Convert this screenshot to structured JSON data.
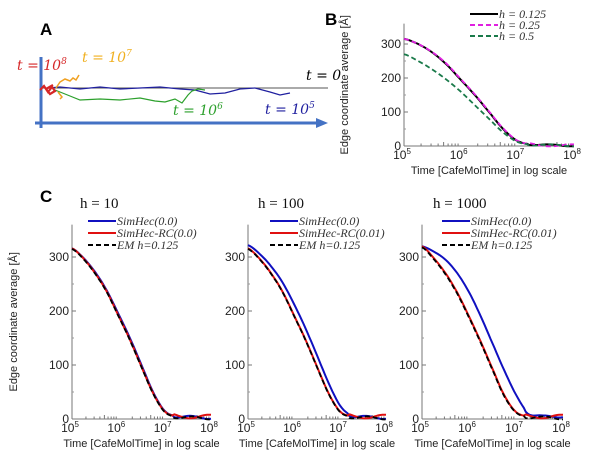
{
  "panels": {
    "A": {
      "label": "A",
      "annotations": [
        {
          "text": "t = 10",
          "sup": "8",
          "color": "#d62728"
        },
        {
          "text": "t = 10",
          "sup": "7",
          "color": "#f0b020"
        },
        {
          "text": "t = 0",
          "sup": "",
          "color": "#000000"
        },
        {
          "text": "t = 10",
          "sup": "6",
          "color": "#2ca02c"
        },
        {
          "text": "t = 10",
          "sup": "5",
          "color": "#1f1f9f"
        }
      ],
      "axis_color": "#4472c4"
    },
    "B": {
      "label": "B"
    },
    "C": {
      "label": "C"
    }
  },
  "chart_data": [
    {
      "id": "B",
      "type": "line",
      "title": "",
      "xlabel": "Time [CafeMolTime] in log scale",
      "ylabel": "Edge coordinate average [Å]",
      "xscale": "log",
      "xlim": [
        100000,
        100000000
      ],
      "ylim": [
        0,
        360
      ],
      "xticks": [
        "10^5",
        "10^6",
        "10^7",
        "10^8"
      ],
      "yticks": [
        0,
        100,
        200,
        300
      ],
      "legend": "top-right",
      "x_log10": [
        5,
        5.25,
        5.5,
        5.75,
        6,
        6.25,
        6.5,
        6.75,
        7,
        7.25,
        7.5,
        7.75,
        8
      ],
      "series": [
        {
          "name": "h = 0.125",
          "color": "#000000",
          "dash": "solid",
          "values": [
            315,
            300,
            275,
            240,
            195,
            150,
            100,
            50,
            15,
            5,
            2,
            2,
            2
          ]
        },
        {
          "name": "h = 0.25",
          "color": "#e020e0",
          "dash": "dashed",
          "values": [
            315,
            300,
            276,
            242,
            197,
            152,
            102,
            52,
            16,
            5,
            2,
            2,
            2
          ]
        },
        {
          "name": "h = 0.5",
          "color": "#1a7a4a",
          "dash": "dashed",
          "values": [
            270,
            250,
            225,
            195,
            160,
            120,
            80,
            40,
            12,
            4,
            2,
            2,
            2
          ]
        }
      ]
    },
    {
      "id": "C1",
      "type": "line",
      "title": "h = 10",
      "xlabel": "Time [CafeMolTime] in log scale",
      "ylabel": "Edge coordinate average [Å]",
      "xscale": "log",
      "xlim": [
        100000,
        100000000
      ],
      "ylim": [
        0,
        360
      ],
      "xticks": [
        "10^5",
        "10^6",
        "10^7",
        "10^8"
      ],
      "yticks": [
        0,
        100,
        200,
        300
      ],
      "legend": "top-right",
      "x_log10": [
        5,
        5.25,
        5.5,
        5.75,
        6,
        6.25,
        6.5,
        6.75,
        7,
        7.25,
        7.5,
        7.75,
        8
      ],
      "series": [
        {
          "name": "SimHec(0.0)",
          "color": "#1010c0",
          "dash": "solid",
          "values": [
            316,
            298,
            272,
            238,
            195,
            150,
            100,
            50,
            15,
            5,
            3,
            3,
            3
          ]
        },
        {
          "name": "SimHec-RC(0.0)",
          "color": "#e01010",
          "dash": "solid",
          "values": [
            316,
            297,
            270,
            236,
            192,
            147,
            97,
            48,
            14,
            5,
            4,
            5,
            5
          ]
        },
        {
          "name": "EM h=0.125",
          "color": "#000000",
          "dash": "dashed",
          "values": [
            315,
            296,
            269,
            235,
            191,
            146,
            96,
            47,
            13,
            4,
            2,
            2,
            2
          ]
        }
      ]
    },
    {
      "id": "C2",
      "type": "line",
      "title": "h = 100",
      "xlabel": "Time [CafeMolTime] in log scale",
      "ylabel": "",
      "xscale": "log",
      "xlim": [
        100000,
        100000000
      ],
      "ylim": [
        0,
        360
      ],
      "xticks": [
        "10^5",
        "10^6",
        "10^7",
        "10^8"
      ],
      "yticks": [
        0,
        100,
        200,
        300
      ],
      "legend": "top-right",
      "x_log10": [
        5,
        5.25,
        5.5,
        5.75,
        6,
        6.25,
        6.5,
        6.75,
        7,
        7.25,
        7.5,
        7.75,
        8
      ],
      "series": [
        {
          "name": "SimHec(0.0)",
          "color": "#1010c0",
          "dash": "solid",
          "values": [
            322,
            306,
            283,
            253,
            213,
            168,
            118,
            67,
            25,
            6,
            3,
            3,
            3
          ]
        },
        {
          "name": "SimHec-RC(0.01)",
          "color": "#e01010",
          "dash": "solid",
          "values": [
            316,
            297,
            270,
            236,
            192,
            147,
            97,
            48,
            14,
            5,
            4,
            5,
            5
          ]
        },
        {
          "name": "EM h=0.125",
          "color": "#000000",
          "dash": "dashed",
          "values": [
            315,
            296,
            269,
            235,
            191,
            146,
            96,
            47,
            13,
            4,
            2,
            2,
            2
          ]
        }
      ]
    },
    {
      "id": "C3",
      "type": "line",
      "title": "h = 1000",
      "xlabel": "Time [CafeMolTime] in log scale",
      "ylabel": "",
      "xscale": "log",
      "xlim": [
        100000,
        100000000
      ],
      "ylim": [
        0,
        360
      ],
      "xticks": [
        "10^5",
        "10^6",
        "10^7",
        "10^8"
      ],
      "yticks": [
        0,
        100,
        200,
        300
      ],
      "legend": "top-right",
      "x_log10": [
        5,
        5.25,
        5.5,
        5.75,
        6,
        6.25,
        6.5,
        6.75,
        7,
        7.25,
        7.5,
        7.75,
        8
      ],
      "series": [
        {
          "name": "SimHec(0.0)",
          "color": "#1010c0",
          "dash": "solid",
          "values": [
            320,
            310,
            295,
            270,
            235,
            190,
            140,
            90,
            45,
            12,
            4,
            5,
            6
          ]
        },
        {
          "name": "SimHec-RC(0.01)",
          "color": "#e01010",
          "dash": "solid",
          "values": [
            320,
            298,
            270,
            234,
            190,
            143,
            93,
            44,
            13,
            5,
            4,
            5,
            5
          ]
        },
        {
          "name": "EM h=0.125",
          "color": "#000000",
          "dash": "dashed",
          "values": [
            318,
            296,
            268,
            232,
            188,
            141,
            91,
            42,
            12,
            4,
            2,
            2,
            2
          ]
        }
      ]
    }
  ]
}
